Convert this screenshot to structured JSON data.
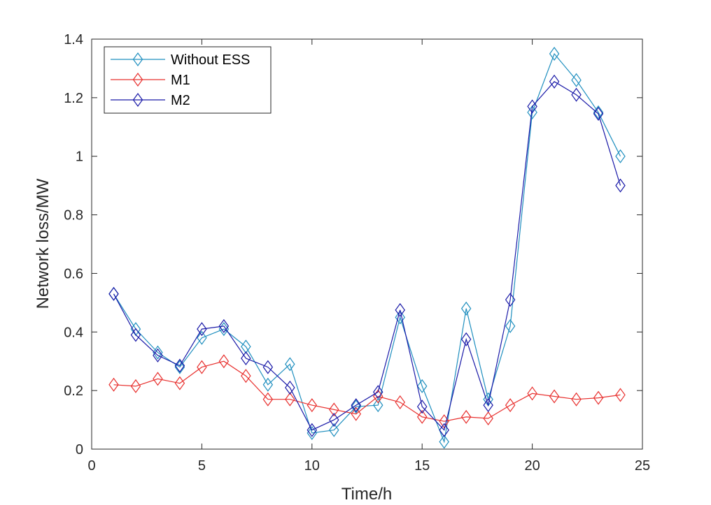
{
  "chart_data": {
    "type": "line",
    "xlabel": "Time/h",
    "ylabel": "Network loss/MW",
    "xlim": [
      0,
      25
    ],
    "ylim": [
      0,
      1.4
    ],
    "xticks": [
      0,
      5,
      10,
      15,
      20,
      25
    ],
    "yticks": [
      0,
      0.2,
      0.4,
      0.6,
      0.8,
      1,
      1.2,
      1.4
    ],
    "xtick_labels": [
      "0",
      "5",
      "10",
      "15",
      "20",
      "25"
    ],
    "ytick_labels": [
      "0",
      "0.2",
      "0.4",
      "0.6",
      "0.8",
      "1",
      "1.2",
      "1.4"
    ],
    "grid": false,
    "legend_position": "top-left",
    "marker": "diamond",
    "x": [
      1,
      2,
      3,
      4,
      5,
      6,
      7,
      8,
      9,
      10,
      11,
      12,
      13,
      14,
      15,
      16,
      17,
      18,
      19,
      20,
      21,
      22,
      23,
      24
    ],
    "series": [
      {
        "name": "Without ESS",
        "color": "#1f8fbf",
        "values": [
          0.53,
          0.41,
          0.33,
          0.28,
          0.38,
          0.41,
          0.35,
          0.22,
          0.29,
          0.055,
          0.065,
          0.145,
          0.15,
          0.45,
          0.215,
          0.025,
          0.48,
          0.17,
          0.42,
          1.15,
          1.35,
          1.26,
          1.15,
          1.0
        ]
      },
      {
        "name": "M1",
        "color": "#e8302e",
        "values": [
          0.22,
          0.215,
          0.24,
          0.225,
          0.28,
          0.3,
          0.25,
          0.17,
          0.17,
          0.15,
          0.135,
          0.12,
          0.18,
          0.16,
          0.11,
          0.095,
          0.11,
          0.105,
          0.15,
          0.19,
          0.18,
          0.17,
          0.175,
          0.185
        ]
      },
      {
        "name": "M2",
        "color": "#1a1aa8",
        "values": [
          0.53,
          0.39,
          0.32,
          0.285,
          0.41,
          0.42,
          0.31,
          0.28,
          0.21,
          0.065,
          0.1,
          0.15,
          0.195,
          0.475,
          0.145,
          0.065,
          0.375,
          0.15,
          0.51,
          1.17,
          1.255,
          1.21,
          1.145,
          0.9
        ]
      }
    ]
  }
}
